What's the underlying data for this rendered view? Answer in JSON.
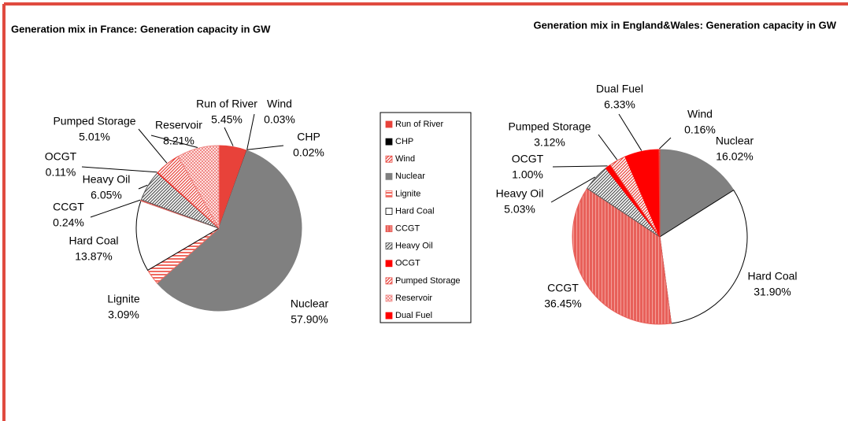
{
  "chart_data": [
    {
      "type": "pie",
      "title": "Generation mix in France: Generation capacity in GW",
      "categories": [
        "Run of River",
        "Wind",
        "CHP",
        "Nuclear",
        "Lignite",
        "Hard Coal",
        "CCGT",
        "Heavy Oil",
        "OCGT",
        "Pumped Storage",
        "Reservoir"
      ],
      "values": [
        5.45,
        0.03,
        0.02,
        57.9,
        3.09,
        13.87,
        0.24,
        6.05,
        0.11,
        5.01,
        8.21
      ],
      "value_labels": [
        "5.45%",
        "0.03%",
        "0.02%",
        "57.90%",
        "3.09%",
        "13.87%",
        "0.24%",
        "6.05%",
        "0.11%",
        "5.01%",
        "8.21%"
      ],
      "colors": [
        "#e8423a",
        "#e8423a",
        "#000000",
        "#808080",
        "#f06a60",
        "#ffffff",
        "#e8605a",
        "#555555",
        "#ff0000",
        "#e8423a",
        "#f08a88"
      ],
      "patterns": [
        "solid",
        "diagonal",
        "solid",
        "solid",
        "hstripe",
        "solid",
        "vstripe",
        "diagonal",
        "solid",
        "diagonal",
        "check"
      ]
    },
    {
      "type": "pie",
      "title": "Generation mix in England&Wales: Generation capacity in GW",
      "categories": [
        "Nuclear",
        "Hard Coal",
        "CCGT",
        "Heavy Oil",
        "OCGT",
        "Pumped Storage",
        "Dual Fuel",
        "Wind"
      ],
      "values": [
        16.02,
        31.9,
        36.45,
        5.03,
        1.0,
        3.12,
        6.33,
        0.16
      ],
      "value_labels": [
        "16.02%",
        "31.90%",
        "36.45%",
        "5.03%",
        "1.00%",
        "3.12%",
        "6.33%",
        "0.16%"
      ],
      "colors": [
        "#808080",
        "#ffffff",
        "#e8605a",
        "#555555",
        "#ff0000",
        "#e8423a",
        "#ff0000",
        "#e8423a"
      ],
      "patterns": [
        "solid",
        "solid",
        "vstripe",
        "diagonal",
        "solid",
        "diagonal",
        "solid",
        "diagonal"
      ]
    }
  ],
  "legend": {
    "entries": [
      {
        "name": "Run of River",
        "color": "#e8423a",
        "pattern": "solid"
      },
      {
        "name": "CHP",
        "color": "#000000",
        "pattern": "solid"
      },
      {
        "name": "Wind",
        "color": "#e8423a",
        "pattern": "diagonal"
      },
      {
        "name": "Nuclear",
        "color": "#808080",
        "pattern": "solid"
      },
      {
        "name": "Lignite",
        "color": "#f06a60",
        "pattern": "hstripe"
      },
      {
        "name": "Hard Coal",
        "color": "#ffffff",
        "pattern": "solid"
      },
      {
        "name": "CCGT",
        "color": "#e8605a",
        "pattern": "vstripe"
      },
      {
        "name": "Heavy Oil",
        "color": "#555555",
        "pattern": "diagonal"
      },
      {
        "name": "OCGT",
        "color": "#ff0000",
        "pattern": "solid"
      },
      {
        "name": "Pumped Storage",
        "color": "#e8423a",
        "pattern": "diagonal"
      },
      {
        "name": "Reservoir",
        "color": "#f08a88",
        "pattern": "check"
      },
      {
        "name": "Dual Fuel",
        "color": "#ff0000",
        "pattern": "solid"
      }
    ]
  }
}
